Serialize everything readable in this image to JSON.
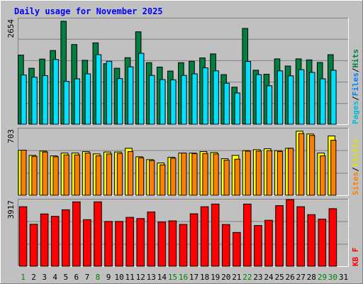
{
  "chart_data": {
    "type": "bar",
    "title": "Daily usage for November 2025",
    "categories": [
      "1",
      "2",
      "3",
      "4",
      "5",
      "6",
      "7",
      "8",
      "9",
      "10",
      "11",
      "12",
      "13",
      "14",
      "15",
      "16",
      "17",
      "18",
      "19",
      "20",
      "21",
      "22",
      "23",
      "24",
      "25",
      "26",
      "27",
      "28",
      "29",
      "30",
      "31"
    ],
    "weekend_days": [
      1,
      8,
      15,
      16,
      22,
      29,
      30
    ],
    "panels": [
      {
        "name": "top",
        "ymax_label": "2654",
        "ymax": 2654,
        "side_label": [
          "Pages",
          "Files",
          "Hits"
        ],
        "series": [
          {
            "name": "Hits",
            "color": "#008040",
            "values": [
              1735,
              1405,
              1635,
              1850,
              2584,
              2000,
              1605,
              2042,
              1520,
              1405,
              1670,
              2320,
              1545,
              1435,
              1335,
              1545,
              1580,
              1665,
              1765,
              1245,
              930,
              2404,
              1355,
              1255,
              1640,
              1460,
              1640,
              1615,
              1550,
              1745,
              null
            ]
          },
          {
            "name": "Files",
            "color": "#00e0ff",
            "values": [
              1235,
              1180,
              1220,
              1625,
              1075,
              1140,
              1265,
              1745,
              1580,
              1145,
              1440,
              1780,
              1225,
              1120,
              1115,
              1225,
              1265,
              1415,
              1340,
              1030,
              785,
              1575,
              1245,
              965,
              1340,
              1215,
              1370,
              1300,
              1140,
              1355,
              null
            ]
          },
          {
            "name": "Pages",
            "color": "#00c0d0",
            "values": [
              1235,
              1180,
              1220,
              1625,
              1075,
              1140,
              1265,
              1745,
              1580,
              1145,
              1440,
              1780,
              1225,
              1120,
              1115,
              1225,
              1265,
              1415,
              1340,
              1030,
              785,
              1575,
              1245,
              965,
              1340,
              1215,
              1370,
              1300,
              1140,
              1355,
              null
            ]
          }
        ]
      },
      {
        "name": "middle",
        "ymax_label": "703",
        "ymax": 703,
        "side_label": [
          "Sites",
          "Visits"
        ],
        "series": [
          {
            "name": "Visits",
            "color": "#ffff00",
            "values": [
              475,
              420,
              465,
              415,
              445,
              445,
              460,
              435,
              455,
              455,
              495,
              405,
              375,
              340,
              400,
              445,
              445,
              460,
              450,
              385,
              420,
              470,
              480,
              490,
              470,
              495,
              675,
              645,
              445,
              625,
              null
            ]
          },
          {
            "name": "Sites",
            "color": "#ff8000",
            "values": [
              475,
              410,
              455,
              405,
              425,
              425,
              445,
              415,
              435,
              440,
              460,
              395,
              365,
              320,
              390,
              445,
              440,
              440,
              435,
              370,
              380,
              465,
              465,
              470,
              460,
              495,
              650,
              630,
              415,
              580,
              null
            ]
          }
        ]
      },
      {
        "name": "bottom",
        "ymax_label": "3917",
        "ymax": 3917,
        "side_label": [
          "KB",
          "F"
        ],
        "series": [
          {
            "name": "KB F",
            "color": "#ff0000",
            "values": [
              3495,
              2465,
              3070,
              2930,
              3315,
              3780,
              2735,
              3780,
              2630,
              2630,
              2870,
              2800,
              3190,
              2595,
              2665,
              2455,
              3080,
              3495,
              3650,
              2450,
              1985,
              3650,
              2390,
              2700,
              3560,
              3915,
              3495,
              3030,
              2765,
              3380,
              null
            ]
          }
        ]
      }
    ]
  }
}
